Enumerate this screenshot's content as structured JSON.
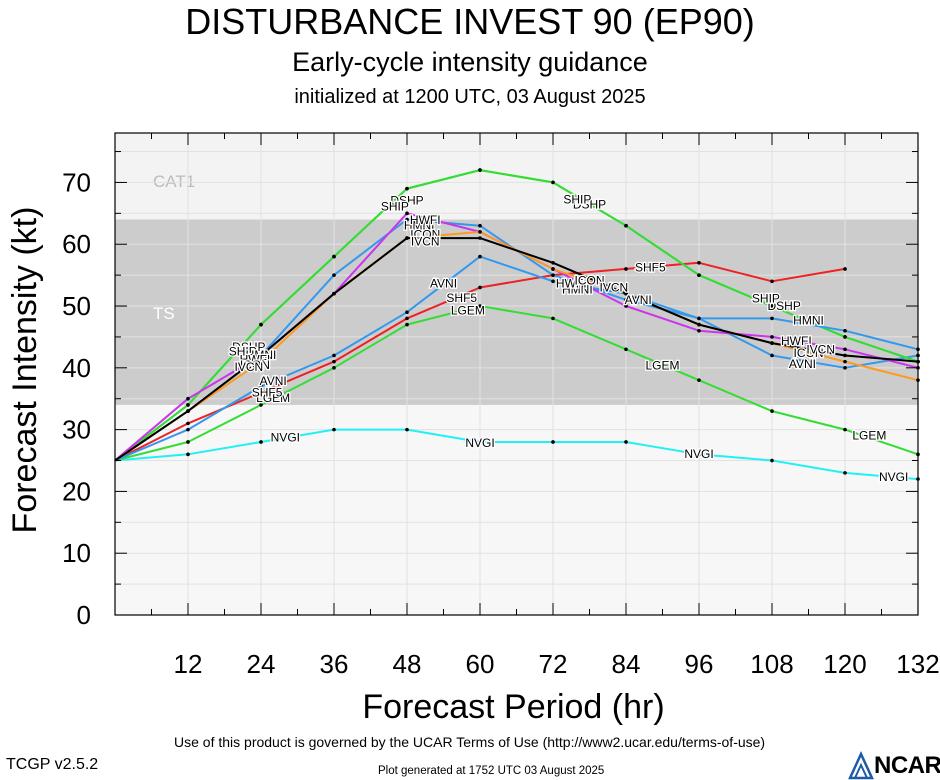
{
  "header": {
    "title": "DISTURBANCE INVEST 90 (EP90)",
    "subtitle": "Early-cycle intensity guidance",
    "init": "initialized at 1200 UTC, 03 August 2025"
  },
  "footer": {
    "terms": "Use of this product is governed by the UCAR Terms of Use (http://www2.ucar.edu/terms-of-use)",
    "version": "TCGP v2.5.2",
    "generated": "Plot generated at 1752 UTC   03 August 2025",
    "logo": "NCAR"
  },
  "chart_data": {
    "type": "line",
    "xlabel": "Forecast Period (hr)",
    "ylabel": "Forecast Intensity (kt)",
    "xlim": [
      0,
      132
    ],
    "ylim": [
      0,
      78
    ],
    "xticks": [
      12,
      24,
      36,
      48,
      60,
      72,
      84,
      96,
      108,
      120,
      132
    ],
    "yticks": [
      0,
      10,
      20,
      30,
      40,
      50,
      60,
      70
    ],
    "bands": [
      {
        "label": "TS",
        "from": 34,
        "to": 64,
        "color": "#cccccc"
      },
      {
        "label": "CAT1",
        "from": 64,
        "to": 78,
        "color": "#f3f3f3"
      }
    ],
    "below_band_color": "#f7f7f7",
    "series": [
      {
        "name": "NVGI",
        "color": "#22f0f4",
        "x": [
          0,
          12,
          24,
          36,
          48,
          60,
          72,
          84,
          96,
          108,
          120,
          132
        ],
        "y": [
          25,
          26,
          28,
          30,
          30,
          28,
          28,
          28,
          26,
          25,
          23,
          22
        ],
        "labels": [
          [
            28,
            28.9
          ],
          [
            60,
            28
          ],
          [
            96,
            26.2
          ],
          [
            128,
            22.5
          ]
        ]
      },
      {
        "name": "LGEM",
        "color": "#33dd33",
        "x": [
          0,
          12,
          24,
          36,
          48,
          60,
          72,
          84,
          96,
          108,
          120,
          132
        ],
        "y": [
          25,
          28,
          34,
          40,
          47,
          50,
          48,
          43,
          38,
          33,
          30,
          26
        ],
        "labels": [
          [
            26,
            35.3
          ],
          [
            58,
            49.4
          ],
          [
            90,
            40.5
          ],
          [
            124,
            29.2
          ]
        ]
      },
      {
        "name": "SHF5",
        "color": "#ee2222",
        "x": [
          0,
          12,
          24,
          36,
          48,
          60,
          72,
          84,
          96,
          108,
          120
        ],
        "y": [
          25,
          31,
          36,
          41,
          48,
          53,
          55,
          56,
          57,
          54,
          56
        ],
        "labels": [
          [
            25,
            36.2
          ],
          [
            57,
            51.5
          ],
          [
            88,
            56.4
          ]
        ]
      },
      {
        "name": "AVNI",
        "color": "#3399ee",
        "x": [
          0,
          12,
          24,
          36,
          48,
          60,
          72,
          84,
          96,
          108,
          120,
          132
        ],
        "y": [
          25,
          30,
          37,
          42,
          49,
          58,
          54,
          52,
          48,
          42,
          40,
          42
        ],
        "labels": [
          [
            26,
            38
          ],
          [
            54,
            53.8
          ],
          [
            86,
            51.1
          ],
          [
            113,
            40.8
          ]
        ]
      },
      {
        "name": "DSHP",
        "color": "#33dd33",
        "x": [
          0,
          12,
          24,
          36,
          48,
          60,
          72,
          84,
          96,
          108,
          120,
          132
        ],
        "y": [
          25,
          34,
          47,
          58,
          69,
          72,
          70,
          63,
          55,
          50,
          45,
          41
        ],
        "labels": [
          [
            22,
            43.5
          ],
          [
            48,
            67.2
          ],
          [
            78,
            66.6
          ],
          [
            110,
            50.2
          ]
        ]
      },
      {
        "name": "SHIP",
        "color": "#33dd33",
        "x": [
          0,
          12,
          24,
          36,
          48,
          60,
          72,
          84,
          96,
          108,
          120,
          132
        ],
        "y": [
          25,
          34,
          47,
          58,
          69,
          72,
          70,
          63,
          55,
          50,
          45,
          41
        ],
        "labels": [
          [
            21,
            42.8
          ],
          [
            46,
            66.3
          ],
          [
            76,
            67.4
          ],
          [
            107,
            51.4
          ]
        ]
      },
      {
        "name": "HMNI",
        "color": "#3399ee",
        "x": [
          0,
          12,
          24,
          36,
          48,
          60,
          72,
          84,
          96,
          108,
          120,
          132
        ],
        "y": [
          25,
          33,
          42,
          55,
          64,
          63,
          55,
          51,
          48,
          48,
          46,
          43
        ],
        "labels": [
          [
            24,
            42.2
          ],
          [
            50,
            63.2
          ],
          [
            76,
            52.8
          ],
          [
            114,
            47.8
          ]
        ]
      },
      {
        "name": "HWFI",
        "color": "#cc33ee",
        "x": [
          0,
          12,
          24,
          36,
          48,
          60,
          72,
          84,
          96,
          108,
          120,
          132
        ],
        "y": [
          25,
          35,
          42,
          52,
          65,
          62,
          56,
          50,
          46,
          45,
          43,
          40
        ],
        "labels": [
          [
            23,
            41.5
          ],
          [
            51,
            64.1
          ],
          [
            75,
            53.8
          ],
          [
            112,
            44.5
          ]
        ]
      },
      {
        "name": "ICON",
        "color": "#ff9922",
        "x": [
          0,
          12,
          24,
          36,
          48,
          60,
          72,
          84,
          96,
          108,
          120,
          132
        ],
        "y": [
          25,
          33,
          41,
          52,
          61,
          62,
          56,
          52,
          47,
          44,
          41,
          38
        ],
        "labels": [
          [
            23,
            40.6
          ],
          [
            51,
            61.7
          ],
          [
            78,
            54.3
          ],
          [
            114,
            42.6
          ]
        ]
      },
      {
        "name": "IVCN",
        "color": "#000000",
        "x": [
          0,
          12,
          24,
          36,
          48,
          60,
          72,
          84,
          96,
          108,
          120,
          132
        ],
        "y": [
          25,
          33,
          42,
          52,
          61,
          61,
          57,
          52,
          47,
          44,
          42,
          41
        ],
        "labels": [
          [
            22,
            40.3
          ],
          [
            51,
            60.6
          ],
          [
            82,
            53.2
          ],
          [
            116,
            43.1
          ]
        ]
      }
    ]
  }
}
